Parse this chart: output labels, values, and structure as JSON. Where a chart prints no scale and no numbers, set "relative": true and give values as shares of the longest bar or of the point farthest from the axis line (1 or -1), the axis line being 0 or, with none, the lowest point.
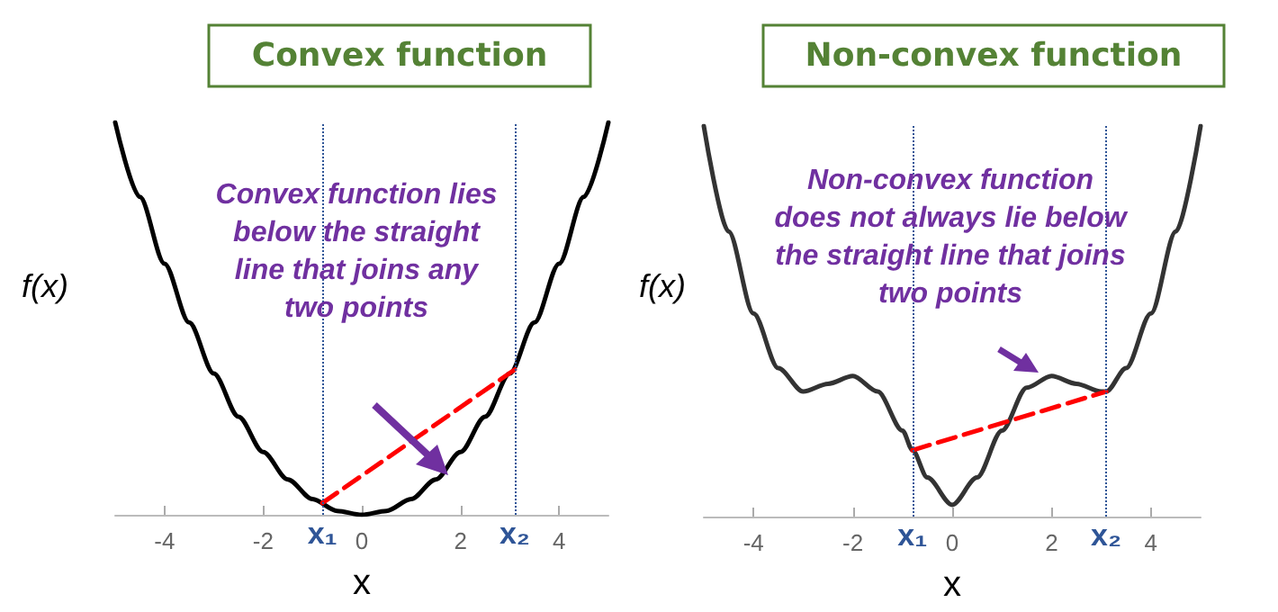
{
  "chart_data": [
    {
      "type": "line",
      "title": "Convex function",
      "xlabel": "x",
      "ylabel": "f(x)",
      "relative": true,
      "xlim": [
        -5,
        5
      ],
      "xticks": [
        -4,
        -2,
        0,
        2,
        4
      ],
      "marker": "none",
      "grid": false,
      "annotations": [
        "Convex function lies below the straight line that joins any two points"
      ],
      "ref_lines": [
        {
          "axis": "x",
          "value": -0.8,
          "label": "x₁",
          "color": "#2f5597",
          "line_style": "dotted"
        },
        {
          "axis": "x",
          "value": 3.1,
          "label": "x₂",
          "color": "#2f5597",
          "line_style": "dotted"
        }
      ],
      "series": [
        {
          "color": "#000000",
          "x": [
            -5,
            -4.5,
            -4,
            -3.5,
            -3,
            -2.5,
            -2,
            -1.5,
            -1,
            -0.5,
            0,
            0.5,
            1,
            1.5,
            2,
            2.5,
            3,
            3.5,
            4,
            4.5,
            5
          ],
          "values": [
            1,
            0.81,
            0.64,
            0.49,
            0.36,
            0.25,
            0.16,
            0.09,
            0.04,
            0.01,
            0,
            0.01,
            0.04,
            0.09,
            0.16,
            0.25,
            0.36,
            0.49,
            0.64,
            0.81,
            1
          ]
        },
        {
          "color": "#ff0000",
          "line_style": "dashed",
          "x": [
            -0.8,
            3.1
          ],
          "values": [
            0.03,
            0.37
          ]
        }
      ]
    },
    {
      "type": "line",
      "title": "Non-convex function",
      "xlabel": "x",
      "ylabel": "f(x)",
      "relative": true,
      "xlim": [
        -5,
        5
      ],
      "xticks": [
        -4,
        -2,
        0,
        2,
        4
      ],
      "marker": "none",
      "grid": false,
      "annotations": [
        "Non-convex function does not always lie below the straight line that joins two points"
      ],
      "ref_lines": [
        {
          "axis": "x",
          "value": -0.8,
          "label": "x₁",
          "color": "#2f5597",
          "line_style": "dotted"
        },
        {
          "axis": "x",
          "value": 3.1,
          "label": "x₂",
          "color": "#2f5597",
          "line_style": "dotted"
        }
      ],
      "series": [
        {
          "color": "#333333",
          "x": [
            -5,
            -4.5,
            -4,
            -3.5,
            -3,
            -2.5,
            -2,
            -1.5,
            -1,
            -0.8,
            -0.5,
            0,
            0.5,
            1,
            1.5,
            2,
            2.5,
            3,
            3.1,
            3.5,
            4,
            4.5,
            5
          ],
          "values": [
            1,
            0.73,
            0.52,
            0.38,
            0.32,
            0.34,
            0.36,
            0.32,
            0.22,
            0.17,
            0.1,
            0.03,
            0.1,
            0.22,
            0.33,
            0.36,
            0.34,
            0.32,
            0.32,
            0.38,
            0.52,
            0.73,
            1
          ]
        },
        {
          "color": "#ff0000",
          "line_style": "dashed",
          "x": [
            -0.8,
            3.1
          ],
          "values": [
            0.17,
            0.32
          ]
        }
      ]
    }
  ]
}
